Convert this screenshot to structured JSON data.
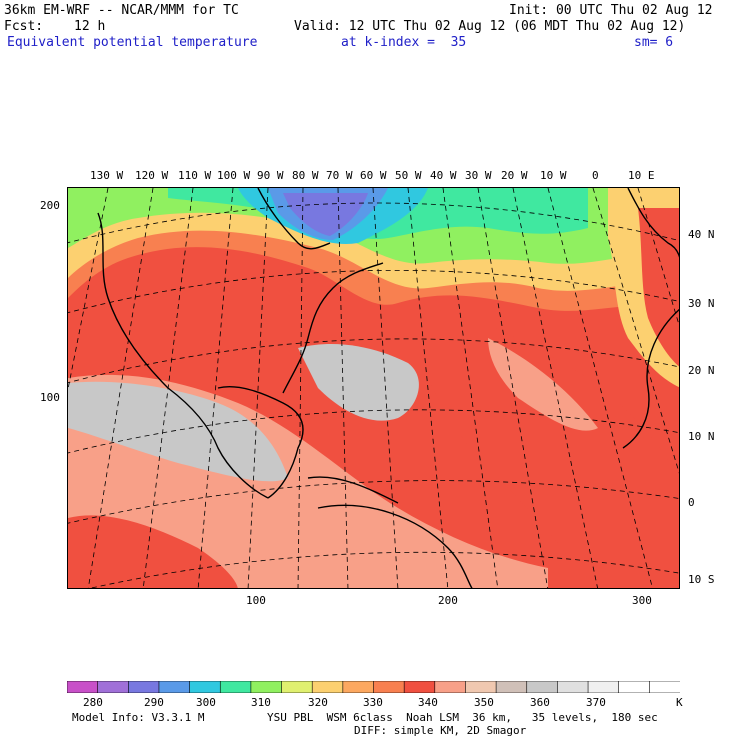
{
  "header": {
    "model_title": "36km EM-WRF -- NCAR/MMM for TC",
    "init": "Init: 00 UTC Thu 02 Aug 12",
    "fcst_label": "Fcst:",
    "fcst_hours": "12 h",
    "valid": "Valid: 12 UTC Thu 02 Aug 12 (06 MDT Thu 02 Aug 12)",
    "field": "Equivalent potential temperature",
    "level": "at k-index =  35",
    "smoothing": "sm= 6"
  },
  "map": {
    "top_lon_labels": [
      "130 W",
      "120 W",
      "110 W",
      "100 W",
      "90 W",
      "80 W",
      "70 W",
      "60 W",
      "50 W",
      "40 W",
      "30 W",
      "20 W",
      "10 W",
      "0",
      "10 E"
    ],
    "right_lat_labels": [
      "40 N",
      "30 N",
      "20 N",
      "10 N",
      "0",
      "10 S"
    ],
    "left_grid_labels": [
      "200",
      "100"
    ],
    "bottom_grid_labels": [
      "100",
      "200",
      "300"
    ]
  },
  "colorbar": {
    "colors": [
      "#c850c8",
      "#a070d8",
      "#7878e0",
      "#5a9ae8",
      "#30c8e0",
      "#40e8a0",
      "#90f060",
      "#e0f070",
      "#fcd070",
      "#fca860",
      "#f88050",
      "#f05040",
      "#f8a088",
      "#f0c8b0",
      "#d0c0b8",
      "#c8c8c8",
      "#e0e0e0",
      "#f0f0f0",
      "#ffffff",
      "#ffffff"
    ],
    "tick_labels": [
      "280",
      "290",
      "300",
      "310",
      "320",
      "330",
      "340",
      "350",
      "360",
      "370"
    ],
    "unit": "K"
  },
  "footer": {
    "model_info": "Model Info: V3.3.1 M",
    "physics": "YSU PBL  WSM 6class  Noah LSM  36 km,   35 levels,  180 sec",
    "diffusion": "DIFF: simple KM, 2D Smagor"
  }
}
